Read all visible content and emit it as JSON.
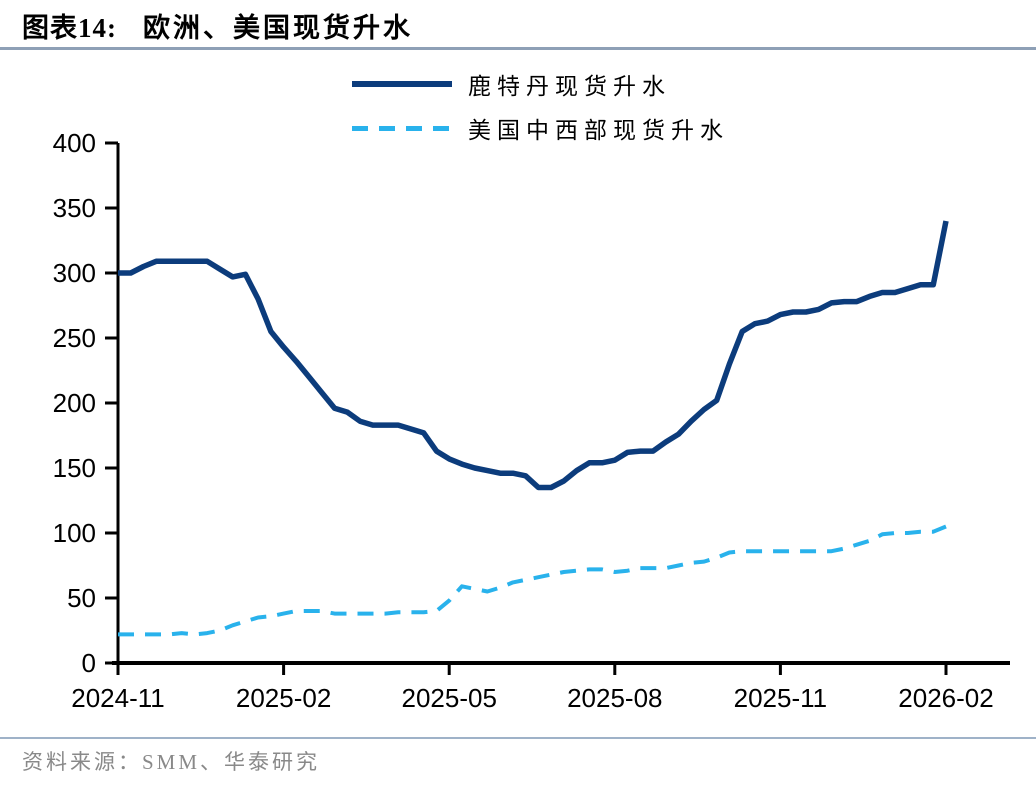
{
  "figure": {
    "title_prefix": "图表14:",
    "title": "欧洲、美国现货升水",
    "source": "资料来源：SMM、华泰研究"
  },
  "colors": {
    "rotterdam_line": "#0C3C7C",
    "midwest_line": "#29B2EC",
    "title_rule": "#8EA0B6",
    "footer_rule": "#9FB2C8",
    "axis": "#000000",
    "tick_label": "#000000",
    "source_text": "#898989"
  },
  "chart_data": {
    "type": "line",
    "title": "欧洲、美国现货升水",
    "legend_position": "top-center",
    "x_frequency": "weekly",
    "x_tick_labels": [
      "2024-11",
      "2025-02",
      "2025-05",
      "2025-08",
      "2025-11",
      "2026-02"
    ],
    "x_tick_positions_weeks": [
      0,
      13,
      26,
      39,
      52,
      65
    ],
    "y_ticks": [
      0,
      50,
      100,
      150,
      200,
      250,
      300,
      350,
      400
    ],
    "ylim": [
      0,
      400
    ],
    "grid": false,
    "series": [
      {
        "name": "鹿特丹现货升水",
        "style": "solid",
        "color": "#0C3C7C",
        "values": [
          300,
          300,
          305,
          309,
          309,
          309,
          309,
          309,
          303,
          297,
          299,
          280,
          255,
          243,
          232,
          220,
          208,
          196,
          193,
          186,
          183,
          183,
          183,
          180,
          177,
          163,
          157,
          153,
          150,
          148,
          146,
          146,
          144,
          135,
          135,
          140,
          148,
          154,
          154,
          156,
          162,
          163,
          163,
          170,
          176,
          186,
          195,
          202,
          230,
          255,
          261,
          263,
          268,
          270,
          270,
          272,
          277,
          278,
          278,
          282,
          285,
          285,
          288,
          291,
          291,
          340
        ]
      },
      {
        "name": "美国中西部现货升水",
        "style": "dashed",
        "color": "#29B2EC",
        "values": [
          22,
          22,
          22,
          22,
          22,
          23,
          22,
          23,
          25,
          29,
          32,
          35,
          36,
          38,
          40,
          40,
          40,
          38,
          38,
          38,
          38,
          38,
          39,
          39,
          39,
          40,
          48,
          59,
          57,
          55,
          58,
          62,
          64,
          66,
          68,
          70,
          71,
          72,
          72,
          70,
          71,
          73,
          73,
          73,
          75,
          77,
          78,
          81,
          85,
          86,
          86,
          86,
          86,
          86,
          86,
          86,
          86,
          88,
          91,
          94,
          99,
          100,
          100,
          101,
          101,
          105
        ]
      }
    ]
  }
}
